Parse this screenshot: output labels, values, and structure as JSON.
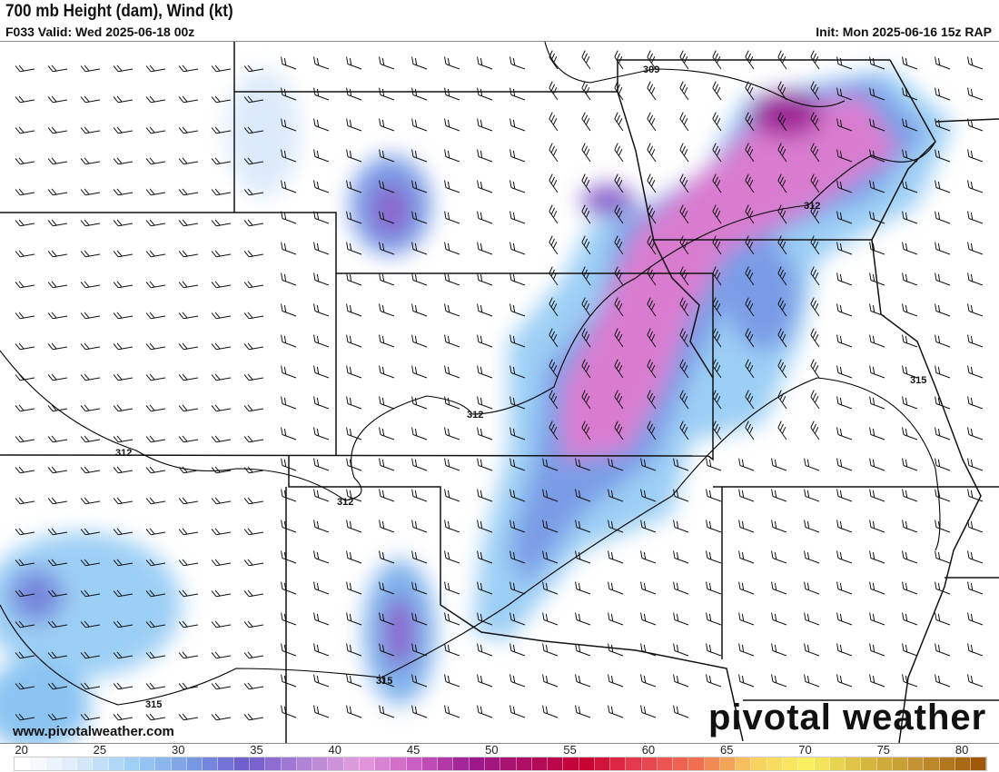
{
  "header": {
    "title": "700 mb Height (dam), Wind (kt)",
    "valid": "F033 Valid: Wed 2025-06-18 00z",
    "init": "Init: Mon 2025-06-16 15z RAP"
  },
  "watermark": {
    "url": "www.pivotalweather.com",
    "logo": "pivotal weather"
  },
  "contour_labels": [
    "309",
    "312",
    "312",
    "312",
    "312",
    "315",
    "315",
    "315"
  ],
  "colorbar": {
    "ticks": [
      "20",
      "25",
      "30",
      "35",
      "40",
      "45",
      "50",
      "55",
      "60",
      "65",
      "70",
      "75",
      "80"
    ],
    "min": 20,
    "max": 82,
    "stops": [
      "#ffffff",
      "#dbeafa",
      "#9ccff5",
      "#7a9ce6",
      "#6f5acb",
      "#b083d6",
      "#e49ddd",
      "#ca5cc0",
      "#9a1a90",
      "#b00e60",
      "#c80030",
      "#e84050",
      "#f07050",
      "#f8d060",
      "#f8f060",
      "#d8b840",
      "#c09030",
      "#a05808"
    ]
  }
}
